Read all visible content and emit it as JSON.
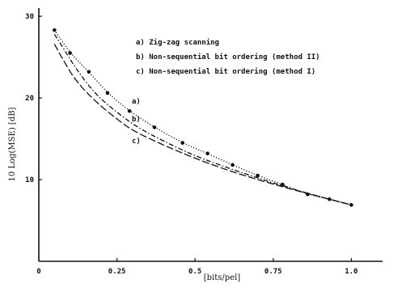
{
  "chart_data": {
    "type": "line",
    "xlabel": "[bits/pel]",
    "ylabel": "10 Log(MSE) [dB]",
    "xlim": [
      0,
      1.1
    ],
    "ylim": [
      0,
      31
    ],
    "x_ticks": [
      {
        "value": 0,
        "label": "0"
      },
      {
        "value": 0.25,
        "label": "0.25"
      },
      {
        "value": 0.5,
        "label": "0.5"
      },
      {
        "value": 0.75,
        "label": "0.75"
      },
      {
        "value": 1.0,
        "label": "1.0"
      }
    ],
    "y_ticks": [
      {
        "value": 10,
        "label": "10"
      },
      {
        "value": 20,
        "label": "20"
      },
      {
        "value": 30,
        "label": "30"
      }
    ],
    "legend": [
      "a) Zig-zag scanning",
      "b) Non-sequential bit ordering (method II)",
      "c) Non-sequential bit ordering (method I)"
    ],
    "series": [
      {
        "label": "a)",
        "style": "dotted",
        "markers": true,
        "x": [
          0.05,
          0.1,
          0.16,
          0.22,
          0.29,
          0.37,
          0.46,
          0.54,
          0.62,
          0.7,
          0.78,
          0.86,
          0.93,
          1.0
        ],
        "y": [
          28.3,
          25.5,
          23.2,
          20.6,
          18.4,
          16.4,
          14.5,
          13.2,
          11.8,
          10.5,
          9.4,
          8.2,
          7.6,
          6.9
        ]
      },
      {
        "label": "b)",
        "style": "dash-dot",
        "markers": false,
        "x": [
          0.05,
          0.08,
          0.12,
          0.18,
          0.25,
          0.32,
          0.4,
          0.5,
          0.6,
          0.7,
          0.8,
          0.9,
          1.0
        ],
        "y": [
          27.8,
          26.0,
          23.5,
          20.5,
          18.2,
          16.3,
          14.7,
          12.9,
          11.5,
          10.2,
          9.0,
          7.9,
          6.9
        ]
      },
      {
        "label": "c)",
        "style": "long-dash",
        "markers": false,
        "x": [
          0.05,
          0.08,
          0.12,
          0.18,
          0.25,
          0.3,
          0.4,
          0.5,
          0.6,
          0.7,
          0.8,
          0.9,
          1.0
        ],
        "y": [
          26.6,
          24.5,
          22.0,
          19.6,
          17.4,
          16.0,
          14.2,
          12.6,
          11.2,
          10.0,
          8.9,
          7.9,
          6.9
        ]
      }
    ]
  }
}
